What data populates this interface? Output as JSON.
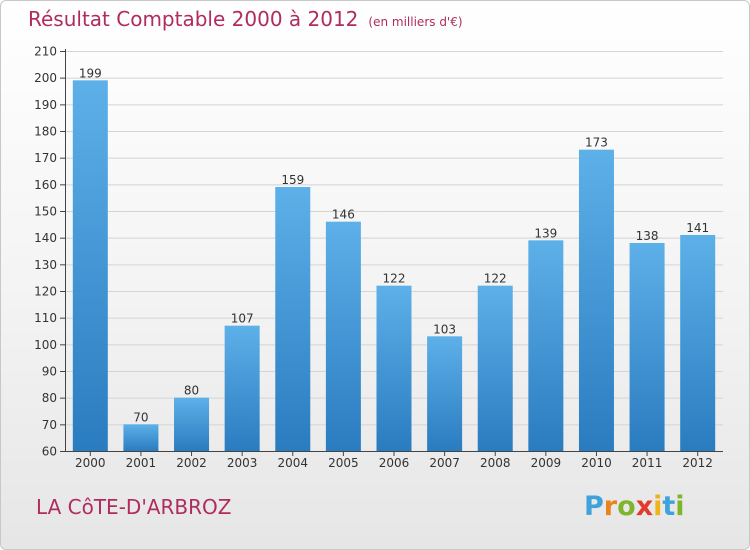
{
  "title": "Résultat Comptable 2000 à 2012",
  "subtitle": "(en milliers d'€)",
  "commune": "LA CôTE-D'ARBROZ",
  "logo": {
    "letters": [
      "P",
      "r",
      "o",
      "x",
      "i",
      "t",
      "i"
    ],
    "colors": [
      "#3fa2dc",
      "#e8841c",
      "#7fb52c",
      "#e23b2e",
      "#f0b31a",
      "#3fa2dc",
      "#7fb52c"
    ]
  },
  "colors": {
    "bar_top": "#5db0e8",
    "bar_bottom": "#2a7cc0",
    "title": "#b02c5e"
  },
  "chart_data": {
    "type": "bar",
    "categories": [
      "2000",
      "2001",
      "2002",
      "2003",
      "2004",
      "2005",
      "2006",
      "2007",
      "2008",
      "2009",
      "2010",
      "2011",
      "2012"
    ],
    "values": [
      199,
      70,
      80,
      107,
      159,
      146,
      122,
      103,
      122,
      139,
      173,
      138,
      141
    ],
    "ylim": [
      60,
      210
    ],
    "yticks": [
      60,
      70,
      80,
      90,
      100,
      110,
      120,
      130,
      140,
      150,
      160,
      170,
      180,
      190,
      200,
      210
    ],
    "grid": true,
    "xlabel": "",
    "ylabel": ""
  }
}
